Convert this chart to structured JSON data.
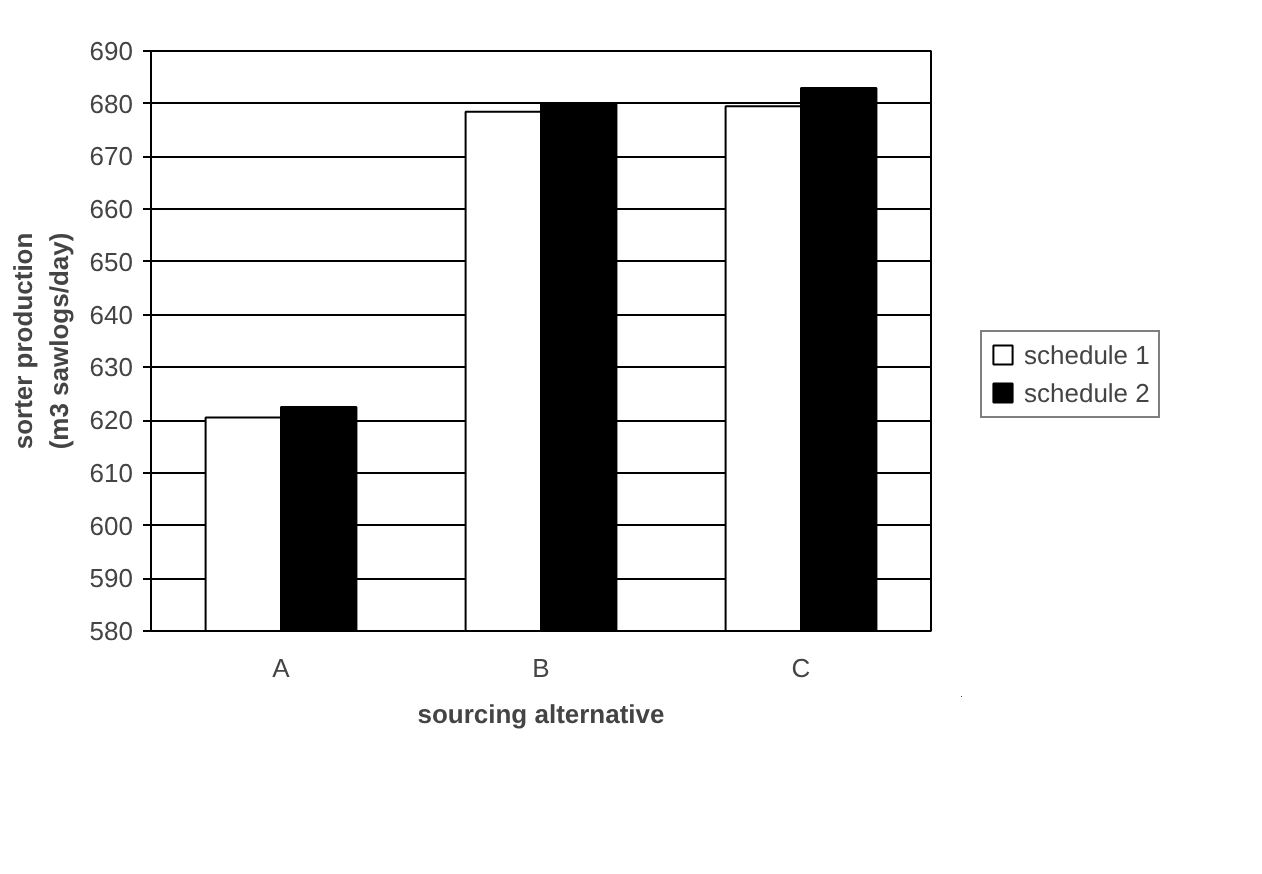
{
  "chart_data": {
    "type": "bar",
    "xlabel": "sourcing alternative",
    "ylabel": "sorter production\n(m3 sawlogs/day)",
    "categories": [
      "A",
      "B",
      "C"
    ],
    "series": [
      {
        "name": "schedule 1",
        "color": "#ffffff",
        "values": [
          620.5,
          678.5,
          679.5
        ]
      },
      {
        "name": "schedule 2",
        "color": "#000000",
        "values": [
          622.5,
          680,
          683
        ]
      }
    ],
    "ylim": [
      580,
      690
    ],
    "yticks": [
      580,
      590,
      600,
      610,
      620,
      630,
      640,
      650,
      660,
      670,
      680,
      690
    ],
    "grid": "y",
    "legend": "right"
  }
}
